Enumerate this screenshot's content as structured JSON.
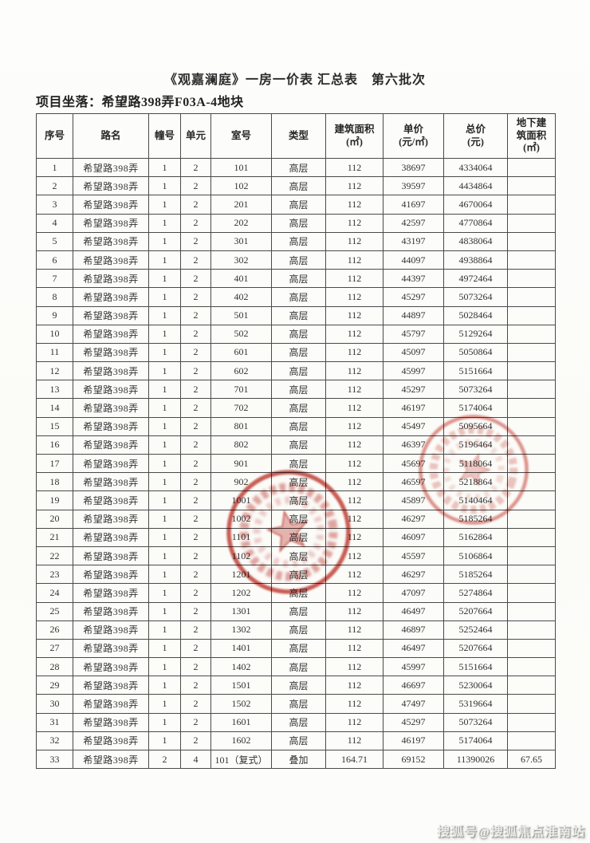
{
  "header": {
    "title": "《观嘉澜庭》一房一价表 汇总表　第六批次",
    "location": "项目坐落：希望路398弄F03A-4地块"
  },
  "table": {
    "columns": [
      {
        "id": "seq",
        "lines": [
          "序号"
        ]
      },
      {
        "id": "road",
        "lines": [
          "路名"
        ]
      },
      {
        "id": "building",
        "lines": [
          "幢号"
        ]
      },
      {
        "id": "unit",
        "lines": [
          "单元"
        ]
      },
      {
        "id": "room",
        "lines": [
          "室号"
        ]
      },
      {
        "id": "type",
        "lines": [
          "类型"
        ]
      },
      {
        "id": "floor-area",
        "lines": [
          "建筑面积",
          "(㎡)"
        ]
      },
      {
        "id": "unit-price",
        "lines": [
          "单价",
          "(元/㎡)"
        ]
      },
      {
        "id": "total-price",
        "lines": [
          "总价",
          "(元)"
        ]
      },
      {
        "id": "underground-area",
        "lines": [
          "地下建",
          "筑面积",
          "(㎡)"
        ]
      }
    ],
    "rows": [
      [
        "1",
        "希望路398弄",
        "1",
        "2",
        "101",
        "高层",
        "112",
        "38697",
        "4334064",
        ""
      ],
      [
        "2",
        "希望路398弄",
        "1",
        "2",
        "102",
        "高层",
        "112",
        "39597",
        "4434864",
        ""
      ],
      [
        "3",
        "希望路398弄",
        "1",
        "2",
        "201",
        "高层",
        "112",
        "41697",
        "4670064",
        ""
      ],
      [
        "4",
        "希望路398弄",
        "1",
        "2",
        "202",
        "高层",
        "112",
        "42597",
        "4770864",
        ""
      ],
      [
        "5",
        "希望路398弄",
        "1",
        "2",
        "301",
        "高层",
        "112",
        "43197",
        "4838064",
        ""
      ],
      [
        "6",
        "希望路398弄",
        "1",
        "2",
        "302",
        "高层",
        "112",
        "44097",
        "4938864",
        ""
      ],
      [
        "7",
        "希望路398弄",
        "1",
        "2",
        "401",
        "高层",
        "112",
        "44397",
        "4972464",
        ""
      ],
      [
        "8",
        "希望路398弄",
        "1",
        "2",
        "402",
        "高层",
        "112",
        "45297",
        "5073264",
        ""
      ],
      [
        "9",
        "希望路398弄",
        "1",
        "2",
        "501",
        "高层",
        "112",
        "44897",
        "5028464",
        ""
      ],
      [
        "10",
        "希望路398弄",
        "1",
        "2",
        "502",
        "高层",
        "112",
        "45797",
        "5129264",
        ""
      ],
      [
        "11",
        "希望路398弄",
        "1",
        "2",
        "601",
        "高层",
        "112",
        "45097",
        "5050864",
        ""
      ],
      [
        "12",
        "希望路398弄",
        "1",
        "2",
        "602",
        "高层",
        "112",
        "45997",
        "5151664",
        ""
      ],
      [
        "13",
        "希望路398弄",
        "1",
        "2",
        "701",
        "高层",
        "112",
        "45297",
        "5073264",
        ""
      ],
      [
        "14",
        "希望路398弄",
        "1",
        "2",
        "702",
        "高层",
        "112",
        "46197",
        "5174064",
        ""
      ],
      [
        "15",
        "希望路398弄",
        "1",
        "2",
        "801",
        "高层",
        "112",
        "45497",
        "5095664",
        ""
      ],
      [
        "16",
        "希望路398弄",
        "1",
        "2",
        "802",
        "高层",
        "112",
        "46397",
        "5196464",
        ""
      ],
      [
        "17",
        "希望路398弄",
        "1",
        "2",
        "901",
        "高层",
        "112",
        "45697",
        "5118064",
        ""
      ],
      [
        "18",
        "希望路398弄",
        "1",
        "2",
        "902",
        "高层",
        "112",
        "46597",
        "5218864",
        ""
      ],
      [
        "19",
        "希望路398弄",
        "1",
        "2",
        "1001",
        "高层",
        "112",
        "45897",
        "5140464",
        ""
      ],
      [
        "20",
        "希望路398弄",
        "1",
        "2",
        "1002",
        "高层",
        "112",
        "46297",
        "5185264",
        ""
      ],
      [
        "21",
        "希望路398弄",
        "1",
        "2",
        "1101",
        "高层",
        "112",
        "46097",
        "5162864",
        ""
      ],
      [
        "22",
        "希望路398弄",
        "1",
        "2",
        "1102",
        "高层",
        "112",
        "45597",
        "5106864",
        ""
      ],
      [
        "23",
        "希望路398弄",
        "1",
        "2",
        "1201",
        "高层",
        "112",
        "46297",
        "5185264",
        ""
      ],
      [
        "24",
        "希望路398弄",
        "1",
        "2",
        "1202",
        "高层",
        "112",
        "47097",
        "5274864",
        ""
      ],
      [
        "25",
        "希望路398弄",
        "1",
        "2",
        "1301",
        "高层",
        "112",
        "46497",
        "5207664",
        ""
      ],
      [
        "26",
        "希望路398弄",
        "1",
        "2",
        "1302",
        "高层",
        "112",
        "46897",
        "5252464",
        ""
      ],
      [
        "27",
        "希望路398弄",
        "1",
        "2",
        "1401",
        "高层",
        "112",
        "46497",
        "5207664",
        ""
      ],
      [
        "28",
        "希望路398弄",
        "1",
        "2",
        "1402",
        "高层",
        "112",
        "45997",
        "5151664",
        ""
      ],
      [
        "29",
        "希望路398弄",
        "1",
        "2",
        "1501",
        "高层",
        "112",
        "46697",
        "5230064",
        ""
      ],
      [
        "30",
        "希望路398弄",
        "1",
        "2",
        "1502",
        "高层",
        "112",
        "47497",
        "5319664",
        ""
      ],
      [
        "31",
        "希望路398弄",
        "1",
        "2",
        "1601",
        "高层",
        "112",
        "45297",
        "5073264",
        ""
      ],
      [
        "32",
        "希望路398弄",
        "1",
        "2",
        "1602",
        "高层",
        "112",
        "46197",
        "5174064",
        ""
      ],
      [
        "33",
        "希望路398弄",
        "2",
        "4",
        "101（复式）",
        "叠加",
        "164.71",
        "69152",
        "11390026",
        "67.65"
      ]
    ]
  },
  "stamps": {
    "color": "#c5473e",
    "icon": "official-red-seal-with-star"
  },
  "watermark": {
    "text": "搜狐号@搜狐焦点淮南站"
  }
}
